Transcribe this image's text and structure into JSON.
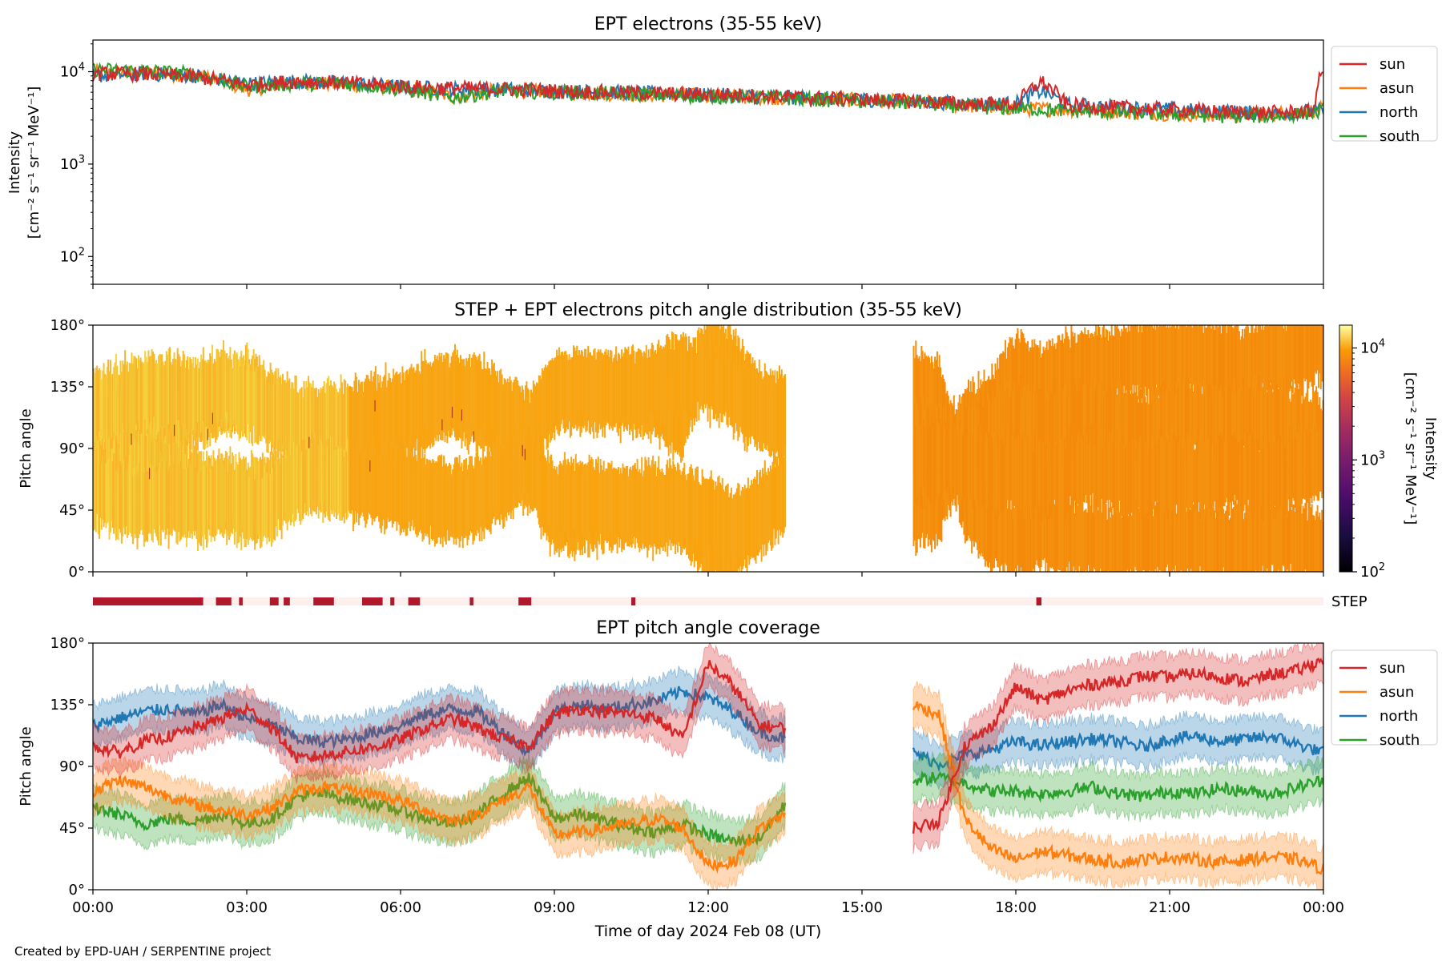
{
  "figure": {
    "credit": "Created by EPD-UAH / SERPENTINE project",
    "xlabel": "Time of day 2024 Feb 08 (UT)",
    "x_ticks": [
      "00:00",
      "03:00",
      "06:00",
      "09:00",
      "12:00",
      "15:00",
      "18:00",
      "21:00",
      "00:00"
    ]
  },
  "colors": {
    "sun": "#d62728",
    "asun": "#ff7f0e",
    "north": "#1f77b4",
    "south": "#2ca02c"
  },
  "chart_data": [
    {
      "type": "line",
      "title": "EPT electrons (35-55 keV)",
      "ylabel": "Intensity",
      "yunit": "[cm⁻² s⁻¹ sr⁻¹ MeV⁻¹]",
      "yscale": "log",
      "ylim": [
        50,
        22000
      ],
      "y_ticks": [
        {
          "base": "10",
          "exp": "2",
          "value": 100
        },
        {
          "base": "10",
          "exp": "3",
          "value": 1000
        },
        {
          "base": "10",
          "exp": "4",
          "value": 10000
        }
      ],
      "xlim_hours": [
        0,
        24
      ],
      "legend": "outside-right",
      "series": [
        {
          "name": "sun",
          "x": [
            0,
            1,
            2,
            3,
            4,
            5,
            6,
            7,
            8,
            9,
            10,
            11,
            12,
            13,
            14,
            15,
            16,
            17,
            18,
            18.5,
            19,
            20,
            21,
            22,
            23,
            23.8,
            24
          ],
          "values": [
            9500,
            9400,
            8800,
            7200,
            7900,
            7500,
            6900,
            6600,
            6500,
            6200,
            6000,
            5800,
            5700,
            5500,
            5200,
            5000,
            4800,
            4500,
            4400,
            7800,
            4300,
            4100,
            3900,
            3700,
            3600,
            3700,
            11000
          ]
        },
        {
          "name": "asun",
          "x": [
            0,
            1,
            2,
            3,
            4,
            5,
            6,
            7,
            8,
            9,
            10,
            11,
            12,
            13,
            14,
            15,
            16,
            17,
            18,
            19,
            20,
            21,
            22,
            23,
            24
          ],
          "values": [
            9800,
            9600,
            9200,
            6400,
            7600,
            7300,
            6600,
            5400,
            6300,
            6000,
            5800,
            5600,
            5500,
            5300,
            5100,
            4900,
            4700,
            4300,
            4000,
            3900,
            3700,
            3500,
            3400,
            3500,
            3900
          ]
        },
        {
          "name": "north",
          "x": [
            0,
            1,
            2,
            3,
            4,
            5,
            6,
            7,
            8,
            9,
            10,
            11,
            12,
            13,
            14,
            15,
            16,
            17,
            18,
            18.5,
            19,
            20,
            21,
            22,
            23,
            24
          ],
          "values": [
            9000,
            9500,
            9000,
            7400,
            7800,
            7500,
            6800,
            6500,
            6400,
            6200,
            6000,
            5800,
            5600,
            5400,
            5200,
            5000,
            4800,
            4500,
            4500,
            6200,
            4400,
            4100,
            3900,
            3700,
            3500,
            3800
          ]
        },
        {
          "name": "south",
          "x": [
            0,
            1,
            2,
            3,
            4,
            5,
            6,
            7,
            8,
            9,
            10,
            11,
            12,
            13,
            14,
            15,
            16,
            17,
            18,
            19,
            20,
            21,
            22,
            23,
            24
          ],
          "values": [
            10500,
            10200,
            9400,
            6800,
            7500,
            7400,
            6500,
            5200,
            6200,
            6000,
            5800,
            5600,
            5400,
            5300,
            5000,
            4800,
            4600,
            4200,
            4000,
            3800,
            3600,
            3500,
            3300,
            3300,
            3700
          ]
        }
      ]
    },
    {
      "type": "heatmap",
      "title": "STEP + EPT electrons pitch angle distribution (35-55 keV)",
      "ylabel": "Pitch angle",
      "y_ticks": [
        "0°",
        "45°",
        "90°",
        "135°",
        "180°"
      ],
      "ylim": [
        0,
        180
      ],
      "xlim_hours": [
        0,
        24
      ],
      "data_gap_hours": [
        13.5,
        16.0
      ],
      "colorbar": {
        "label": "Intensity",
        "unit": "[cm⁻² s⁻¹ sr⁻¹ MeV⁻¹]",
        "scale": "log",
        "range": [
          100,
          16000
        ],
        "ticks": [
          {
            "base": "10",
            "exp": "2",
            "value": 100
          },
          {
            "base": "10",
            "exp": "3",
            "value": 1000
          },
          {
            "base": "10",
            "exp": "4",
            "value": 10000
          }
        ]
      }
    },
    {
      "type": "bar",
      "label": "STEP",
      "xlim_hours": [
        0,
        24
      ],
      "available_intervals_hours": [
        [
          0,
          2.15
        ],
        [
          2.4,
          2.7
        ],
        [
          2.85,
          2.92
        ],
        [
          3.45,
          3.62
        ],
        [
          3.72,
          3.84
        ],
        [
          4.3,
          4.7
        ],
        [
          5.25,
          5.65
        ],
        [
          5.8,
          5.88
        ],
        [
          6.15,
          6.38
        ],
        [
          7.35,
          7.42
        ],
        [
          8.3,
          8.55
        ],
        [
          10.5,
          10.58
        ],
        [
          18.4,
          18.5
        ]
      ],
      "colors": {
        "available": "#b2182b",
        "missing": "#fdf0ec"
      }
    },
    {
      "type": "line",
      "title": "EPT pitch angle coverage",
      "ylabel": "Pitch angle",
      "y_ticks": [
        "0°",
        "45°",
        "90°",
        "135°",
        "180°"
      ],
      "ylim": [
        0,
        180
      ],
      "xlim_hours": [
        0,
        24
      ],
      "data_gap_hours": [
        13.5,
        16.0
      ],
      "band_halfwidth_deg": 15,
      "legend": "outside-right",
      "series": [
        {
          "name": "sun",
          "x": [
            0,
            0.5,
            1,
            1.5,
            2,
            2.5,
            3,
            3.5,
            4,
            4.5,
            5,
            5.5,
            6,
            6.5,
            7,
            7.5,
            8,
            8.5,
            9,
            9.5,
            10,
            10.5,
            11,
            11.5,
            12,
            12.5,
            13,
            13.5,
            16,
            16.5,
            17,
            17.5,
            18,
            18.5,
            19,
            19.5,
            20,
            20.5,
            21,
            21.5,
            22,
            22.5,
            23,
            23.5,
            24
          ],
          "values": [
            105,
            100,
            108,
            112,
            118,
            125,
            132,
            118,
            95,
            98,
            101,
            104,
            110,
            118,
            125,
            118,
            110,
            105,
            128,
            132,
            130,
            128,
            125,
            110,
            165,
            148,
            120,
            118,
            45,
            50,
            105,
            118,
            148,
            138,
            145,
            150,
            152,
            156,
            155,
            158,
            155,
            152,
            157,
            160,
            168
          ]
        },
        {
          "name": "asun",
          "x": [
            0,
            0.5,
            1,
            1.5,
            2,
            2.5,
            3,
            3.5,
            4,
            4.5,
            5,
            5.5,
            6,
            6.5,
            7,
            7.5,
            8,
            8.5,
            9,
            9.5,
            10,
            10.5,
            11,
            11.5,
            12,
            12.5,
            13,
            13.5,
            16,
            16.5,
            17,
            17.5,
            18,
            18.5,
            19,
            19.5,
            20,
            20.5,
            21,
            21.5,
            22,
            22.5,
            23,
            23.5,
            24
          ],
          "values": [
            72,
            80,
            75,
            68,
            62,
            58,
            55,
            60,
            72,
            75,
            72,
            70,
            65,
            58,
            50,
            55,
            65,
            75,
            40,
            42,
            45,
            48,
            52,
            45,
            18,
            20,
            45,
            55,
            135,
            128,
            52,
            30,
            22,
            28,
            25,
            22,
            20,
            22,
            24,
            22,
            20,
            22,
            24,
            22,
            15
          ]
        },
        {
          "name": "north",
          "x": [
            0,
            0.5,
            1,
            1.5,
            2,
            2.5,
            3,
            3.5,
            4,
            4.5,
            5,
            5.5,
            6,
            6.5,
            7,
            7.5,
            8,
            8.5,
            9,
            9.5,
            10,
            10.5,
            11,
            11.5,
            12,
            12.5,
            13,
            13.5,
            16,
            16.5,
            17,
            17.5,
            18,
            18.5,
            19,
            19.5,
            20,
            20.5,
            21,
            21.5,
            22,
            22.5,
            23,
            23.5,
            24
          ],
          "values": [
            120,
            125,
            130,
            132,
            128,
            135,
            125,
            120,
            110,
            108,
            110,
            115,
            120,
            128,
            132,
            130,
            115,
            100,
            130,
            135,
            132,
            135,
            138,
            145,
            140,
            130,
            115,
            110,
            100,
            92,
            98,
            102,
            108,
            105,
            108,
            110,
            108,
            104,
            110,
            112,
            108,
            110,
            112,
            106,
            100
          ]
        },
        {
          "name": "south",
          "x": [
            0,
            0.5,
            1,
            1.5,
            2,
            2.5,
            3,
            3.5,
            4,
            4.5,
            5,
            5.5,
            6,
            6.5,
            7,
            7.5,
            8,
            8.5,
            9,
            9.5,
            10,
            10.5,
            11,
            11.5,
            12,
            12.5,
            13,
            13.5,
            16,
            16.5,
            17,
            17.5,
            18,
            18.5,
            19,
            19.5,
            20,
            20.5,
            21,
            21.5,
            22,
            22.5,
            23,
            23.5,
            24
          ],
          "values": [
            60,
            55,
            48,
            52,
            50,
            55,
            48,
            52,
            68,
            70,
            66,
            62,
            58,
            52,
            48,
            55,
            70,
            82,
            52,
            55,
            50,
            45,
            42,
            48,
            40,
            35,
            38,
            62,
            80,
            82,
            78,
            72,
            72,
            70,
            72,
            75,
            70,
            68,
            72,
            70,
            74,
            72,
            70,
            75,
            80
          ]
        }
      ]
    }
  ]
}
